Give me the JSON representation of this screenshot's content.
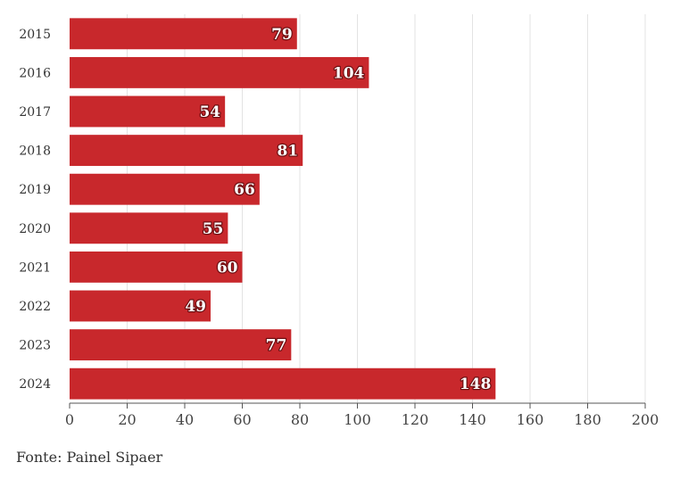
{
  "chart_data": {
    "type": "bar",
    "orientation": "horizontal",
    "categories": [
      "2015",
      "2016",
      "2017",
      "2018",
      "2019",
      "2020",
      "2021",
      "2022",
      "2023",
      "2024"
    ],
    "values": [
      79,
      104,
      54,
      81,
      66,
      55,
      60,
      49,
      77,
      148
    ],
    "xlim": [
      0,
      200
    ],
    "xticks": [
      0,
      20,
      40,
      60,
      80,
      100,
      120,
      140,
      160,
      180,
      200
    ],
    "grid": true,
    "bar_color": "#c8282c",
    "label_color": "#ffffff"
  },
  "source": {
    "prefix": "Fonte:",
    "name": "Painel Sipaer"
  }
}
